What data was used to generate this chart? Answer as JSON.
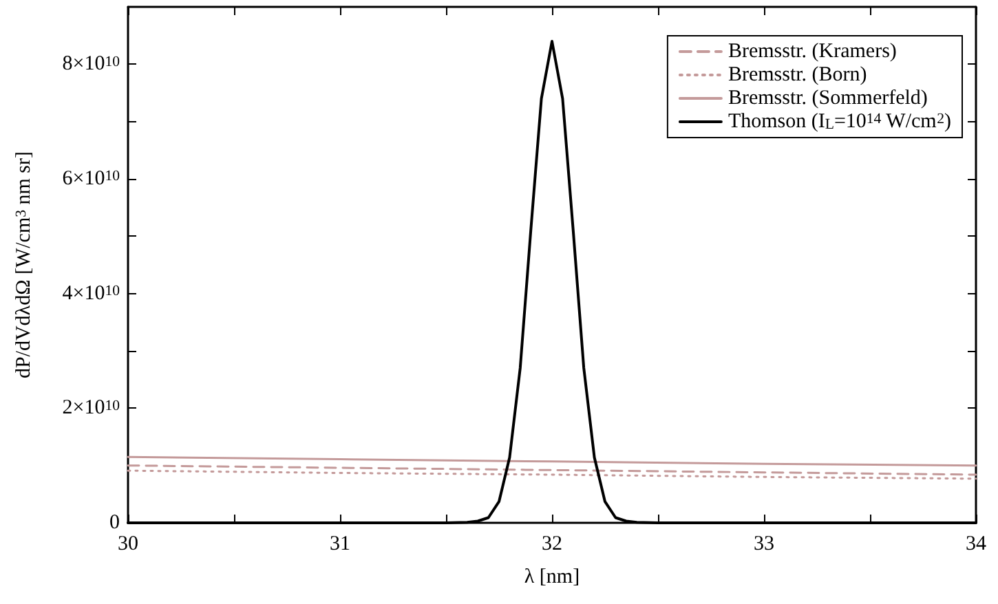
{
  "chart_data": {
    "type": "line",
    "xlabel": "λ [nm]",
    "ylabel": "dP/dVdλdΩ [W/cm$^{3}$ nm sr]",
    "xlim": [
      30,
      34
    ],
    "ylim": [
      0,
      90000000000.0
    ],
    "xticks": [
      30,
      {
        "value": 30.5,
        "label": null
      },
      31,
      {
        "value": 31.5,
        "label": null
      },
      32,
      {
        "value": 32.5,
        "label": null
      },
      33,
      {
        "value": 33.5,
        "label": null
      },
      34
    ],
    "yticks": [
      0,
      {
        "value": 10000000000.0,
        "label": null
      },
      {
        "value": 20000000000.0,
        "label": "2×10$^{10}$"
      },
      {
        "value": 30000000000.0,
        "label": null
      },
      {
        "value": 40000000000.0,
        "label": "4×10$^{10}$"
      },
      {
        "value": 50000000000.0,
        "label": null
      },
      {
        "value": 60000000000.0,
        "label": "6×10$^{10}$"
      },
      {
        "value": 70000000000.0,
        "label": null
      },
      {
        "value": 80000000000.0,
        "label": "8×10$^{10}$"
      }
    ],
    "grid": false,
    "legend": "top right",
    "marker": "none",
    "series": [
      {
        "name": "Bremsstr. (Kramers)",
        "color": "#c49a9a",
        "line_style": "dashed",
        "x": [
          30,
          31,
          32,
          33,
          34
        ],
        "values": [
          10000000000.0,
          9600000000.0,
          9200000000.0,
          8800000000.0,
          8400000000.0
        ]
      },
      {
        "name": "Bremsstr. (Born)",
        "color": "#c49a9a",
        "line_style": "dotted",
        "x": [
          30,
          31,
          32,
          33,
          34
        ],
        "values": [
          9100000000.0,
          8700000000.0,
          8400000000.0,
          8000000000.0,
          7700000000.0
        ]
      },
      {
        "name": "Bremsstr. (Sommerfeld)",
        "color": "#c49a9a",
        "line_style": "solid",
        "x": [
          30,
          31,
          32,
          33,
          34
        ],
        "values": [
          11500000000.0,
          11100000000.0,
          10700000000.0,
          10300000000.0,
          10000000000.0
        ]
      },
      {
        "name": "Thomson (I$_{L}$=10$^{14}$ W/cm$^{2}$)",
        "color": "#000000",
        "line_style": "solid",
        "x": [
          30,
          31.5,
          31.6,
          31.65,
          31.7,
          31.75,
          31.8,
          31.85,
          31.9,
          31.95,
          32,
          32.05,
          32.1,
          32.15,
          32.2,
          32.25,
          32.3,
          32.35,
          32.4,
          32.5,
          34
        ],
        "values": [
          0,
          0,
          100000000.0,
          300000000.0,
          900000000.0,
          3700000000.0,
          11400000000.0,
          27000000000.0,
          51000000000.0,
          74000000000.0,
          84000000000.0,
          74000000000.0,
          51000000000.0,
          27000000000.0,
          11400000000.0,
          3700000000.0,
          900000000.0,
          300000000.0,
          100000000.0,
          0,
          0
        ]
      }
    ]
  }
}
